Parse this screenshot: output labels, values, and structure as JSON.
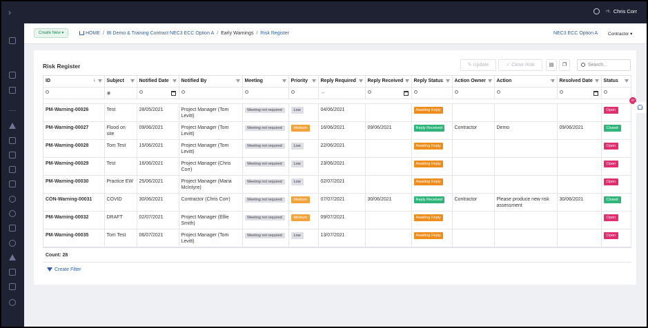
{
  "topbar": {
    "user_name": "Chris Corr",
    "user_initials": "HL"
  },
  "subbar": {
    "create_label": "Create New",
    "breadcrumbs": [
      "HOME",
      "BI Demo & Training Contract NEC3 ECC Option A",
      "Early Warnings",
      "Risk Register"
    ],
    "contract_label": "NEC3 ECC Option A",
    "role_label": "Contractor"
  },
  "card": {
    "title": "Risk Register",
    "update_label": "Update",
    "close_risk_label": "Close Risk",
    "search_placeholder": "Search...",
    "count_label": "Count: 28",
    "create_filter_label": "Create Filter"
  },
  "notification_count": "37",
  "columns": [
    "ID",
    "Subject",
    "Notified Date",
    "Notified By",
    "Meeting",
    "Priority",
    "Reply Required",
    "Reply Received",
    "Reply Status",
    "Action Owner",
    "Action",
    "Resolved Date",
    "Status"
  ],
  "rows": [
    {
      "id": "PM-Warning-00026",
      "subject": "Test",
      "notified_date": "28/05/2021",
      "notified_by": "Project Manager (Tom Levitt)",
      "meeting": "Meeting not required",
      "priority": "Low",
      "reply_required": "04/06/2021",
      "reply_received": "",
      "reply_status": "Awaiting Reply",
      "action_owner": "",
      "action": "",
      "resolved_date": "",
      "status": "Open"
    },
    {
      "id": "PM-Warning-00027",
      "subject": "Flood on site",
      "notified_date": "09/06/2021",
      "notified_by": "Project Manager (Tom Levitt)",
      "meeting": "Meeting not required",
      "priority": "Medium",
      "reply_required": "16/06/2021",
      "reply_received": "09/06/2021",
      "reply_status": "Reply Received",
      "action_owner": "Contractor",
      "action": "Demo",
      "resolved_date": "09/06/2021",
      "status": "Closed"
    },
    {
      "id": "PM-Warning-00028",
      "subject": "Tom Test",
      "notified_date": "15/06/2021",
      "notified_by": "Project Manager (Tom Levitt)",
      "meeting": "Meeting not required",
      "priority": "Low",
      "reply_required": "22/06/2021",
      "reply_received": "",
      "reply_status": "Awaiting Reply",
      "action_owner": "",
      "action": "",
      "resolved_date": "",
      "status": "Open"
    },
    {
      "id": "PM-Warning-00029",
      "subject": "Test",
      "notified_date": "16/06/2021",
      "notified_by": "Project Manager (Chris Corr)",
      "meeting": "Meeting not required",
      "priority": "Low",
      "reply_required": "23/06/2021",
      "reply_received": "",
      "reply_status": "Awaiting Reply",
      "action_owner": "",
      "action": "",
      "resolved_date": "",
      "status": "Open"
    },
    {
      "id": "PM-Warning-00030",
      "subject": "Practice EW",
      "notified_date": "25/06/2021",
      "notified_by": "Project Manager (Maria McIntyre)",
      "meeting": "Meeting not required",
      "priority": "Low",
      "reply_required": "02/07/2021",
      "reply_received": "",
      "reply_status": "Awaiting Reply",
      "action_owner": "",
      "action": "",
      "resolved_date": "",
      "status": "Open"
    },
    {
      "id": "CON-Warning-00031",
      "subject": "COVID",
      "notified_date": "30/06/2021",
      "notified_by": "Contractor (Chris Corr)",
      "meeting": "Meeting not required",
      "priority": "Medium",
      "reply_required": "07/07/2021",
      "reply_received": "30/06/2021",
      "reply_status": "Reply Received",
      "action_owner": "Contractor",
      "action": "Please produce new risk assessment",
      "resolved_date": "30/06/2021",
      "status": "Closed"
    },
    {
      "id": "PM-Warning-00032",
      "subject": "DRAFT",
      "notified_date": "02/07/2021",
      "notified_by": "Project Manager (Ellie Smith)",
      "meeting": "Meeting not required",
      "priority": "Medium",
      "reply_required": "09/07/2021",
      "reply_received": "",
      "reply_status": "Awaiting Reply",
      "action_owner": "",
      "action": "",
      "resolved_date": "",
      "status": "Open"
    },
    {
      "id": "PM-Warning-00035",
      "subject": "Tom Test",
      "notified_date": "06/07/2021",
      "notified_by": "Project Manager (Tom Levitt)",
      "meeting": "Meeting not required",
      "priority": "Low",
      "reply_required": "13/07/2021",
      "reply_received": "",
      "reply_status": "Awaiting Reply",
      "action_owner": "",
      "action": "",
      "resolved_date": "",
      "status": "Open"
    }
  ]
}
